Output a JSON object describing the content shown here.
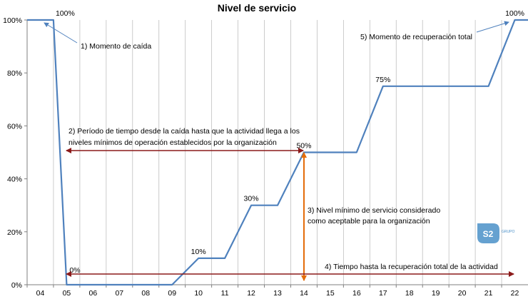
{
  "chart_data": {
    "type": "line",
    "title": "Nivel de servicio",
    "categories": [
      "04",
      "05",
      "06",
      "07",
      "08",
      "09",
      "10",
      "11",
      "12",
      "13",
      "14",
      "15",
      "16",
      "17",
      "18",
      "19",
      "20",
      "21",
      "22"
    ],
    "ylim": [
      0,
      100
    ],
    "y_ticks": [
      "0%",
      "20%",
      "40%",
      "60%",
      "80%",
      "100%"
    ],
    "grid": "vertical",
    "series_color": "#4F81BD",
    "points": [
      {
        "x": 3.5,
        "y": 100
      },
      {
        "x": 4.5,
        "y": 100
      },
      {
        "x": 5.0,
        "y": 0
      },
      {
        "x": 9.0,
        "y": 0
      },
      {
        "x": 10.0,
        "y": 10
      },
      {
        "x": 11.0,
        "y": 10
      },
      {
        "x": 12.0,
        "y": 30
      },
      {
        "x": 13.0,
        "y": 30
      },
      {
        "x": 14.0,
        "y": 50
      },
      {
        "x": 16.0,
        "y": 50
      },
      {
        "x": 17.0,
        "y": 75
      },
      {
        "x": 21.0,
        "y": 75
      },
      {
        "x": 22.0,
        "y": 100
      },
      {
        "x": 22.5,
        "y": 100
      }
    ],
    "data_labels": [
      {
        "text": "100%",
        "x": 4.5,
        "y": 100
      },
      {
        "text": "0%",
        "x": 5.0,
        "y": 0
      },
      {
        "text": "10%",
        "x": 10.0,
        "y": 10
      },
      {
        "text": "30%",
        "x": 12.0,
        "y": 30
      },
      {
        "text": "50%",
        "x": 14.0,
        "y": 50
      },
      {
        "text": "75%",
        "x": 17.0,
        "y": 75
      },
      {
        "text": "100%",
        "x": 22.0,
        "y": 100
      }
    ],
    "annotations": {
      "a1": "1) Momento de caída",
      "a2_line1": "2) Período de tiempo desde la caída hasta que la actividad llega a los",
      "a2_line2": "niveles mínimos de operación establecidos por la organización",
      "a3_line1": "3) Nivel mínimo de servicio considerado",
      "a3_line2": "como aceptable para la organización",
      "a4": "4) Tiempo hasta la recuperación total de la actividad",
      "a5": "5) Momento de recuperación total"
    },
    "arrow_colors": {
      "dark_red": "#8B1A1A",
      "orange": "#E46C0A",
      "blue": "#4F81BD"
    }
  },
  "logo": {
    "text": "S2",
    "subtext": "GRUPO",
    "color": "#4A90C8"
  }
}
